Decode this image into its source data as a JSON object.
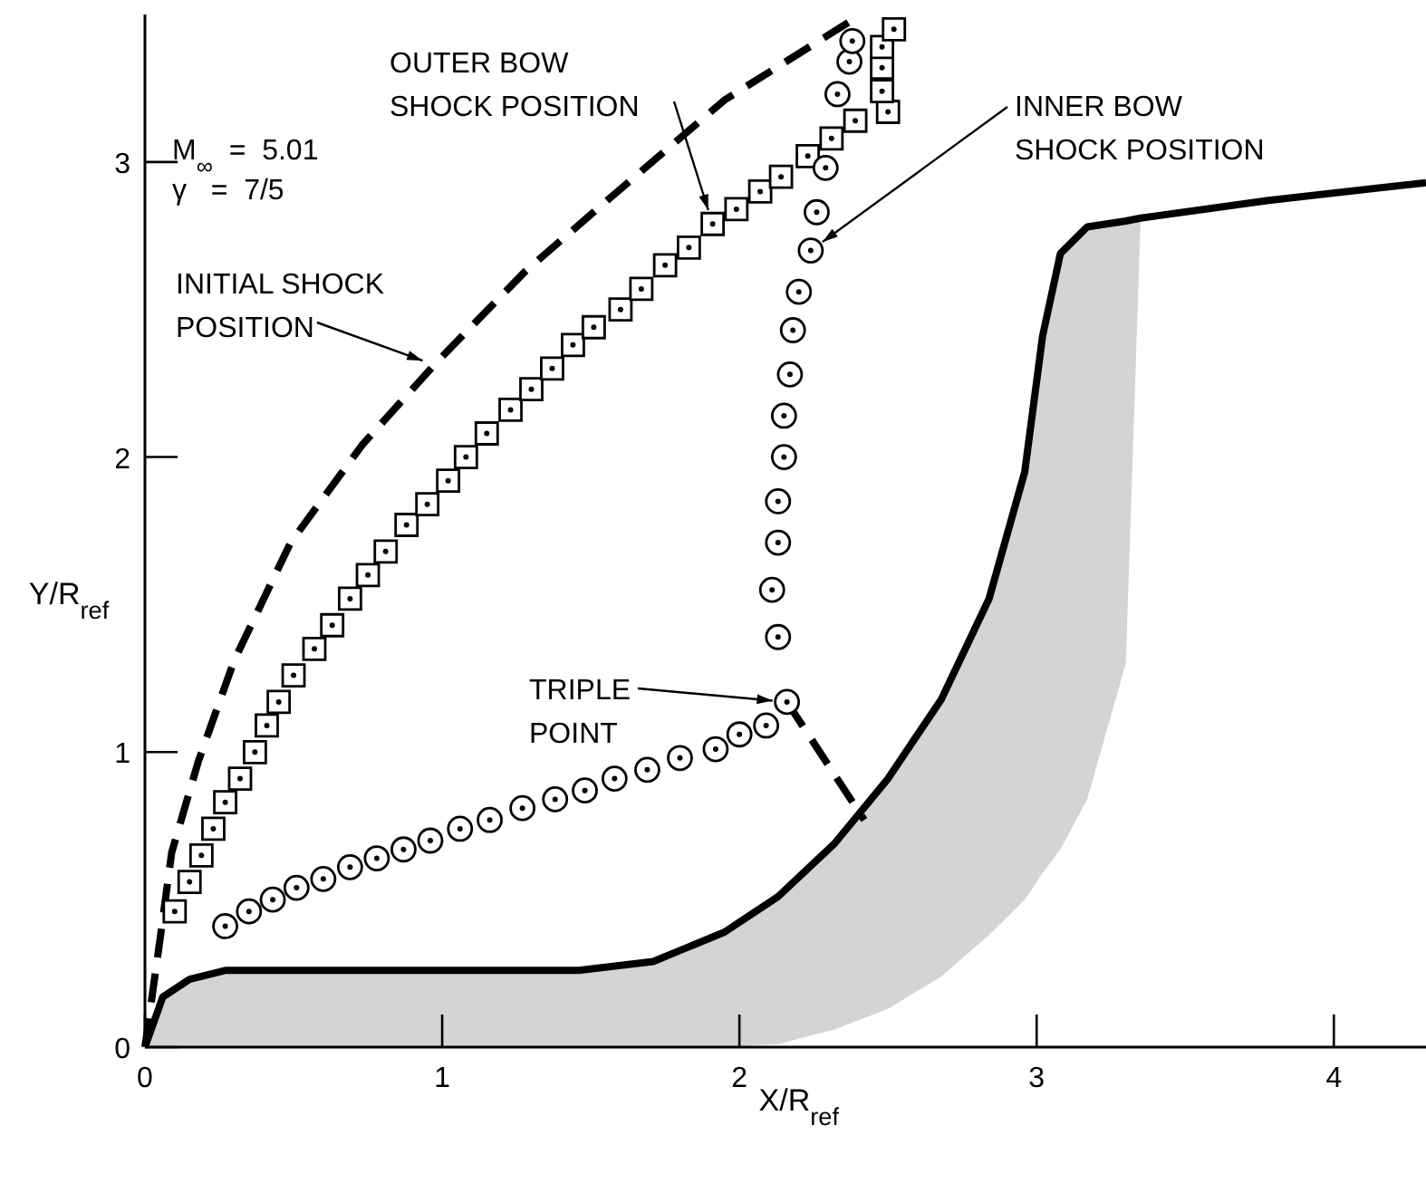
{
  "chart_data": {
    "type": "line",
    "xlabel": "X/R$_{ref}$",
    "ylabel": "Y/R$_{ref}$",
    "xlim": [
      0,
      4.31
    ],
    "ylim": [
      0,
      3.5
    ],
    "xticks": [
      0,
      1,
      2,
      3,
      4
    ],
    "yticks": [
      0,
      1,
      2,
      3
    ],
    "grid": false,
    "annotations": [
      "M$_{∞}$  =  5.01",
      "γ   =  7/5",
      {
        "text": "INITIAL SHOCK\nPOSITION",
        "x": 0.98,
        "y": 2.31
      },
      {
        "text": "OUTER BOW\nSHOCK POSITION",
        "x": 1.91,
        "y": 2.79
      },
      {
        "text": "INNER BOW\nSHOCK POSITION",
        "x": 2.24,
        "y": 2.7
      },
      {
        "text": "TRIPLE\nPOINT",
        "x": 2.16,
        "y": 1.17
      }
    ],
    "series": [
      {
        "color": "#000000",
        "line_style": "solid",
        "x": [
          0,
          0.06,
          0.15,
          0.27,
          0.73,
          1.46,
          1.71,
          1.95,
          2.13,
          2.32,
          2.5,
          2.68,
          2.84,
          2.96,
          3.02,
          3.08,
          3.17,
          3.3,
          3.35,
          3.78,
          4.31
        ],
        "values": [
          0,
          0.17,
          0.23,
          0.26,
          0.26,
          0.26,
          0.29,
          0.39,
          0.51,
          0.69,
          0.91,
          1.18,
          1.52,
          1.95,
          2.41,
          2.69,
          2.78,
          2.8,
          2.81,
          2.87,
          2.93
        ],
        "upper": [
          0,
          0.17,
          0.23,
          0.26,
          0.26,
          0.26,
          0.29,
          0.39,
          0.51,
          0.69,
          0.91,
          1.18,
          1.52,
          1.95,
          2.41,
          2.69,
          2.78,
          2.8,
          2.81,
          null,
          null
        ],
        "lower": [
          0,
          0,
          0,
          0,
          0,
          0,
          0,
          0,
          0.01,
          0.06,
          0.13,
          0.24,
          0.38,
          0.5,
          0.59,
          0.67,
          0.84,
          1.3,
          2.81,
          null,
          null
        ]
      },
      {
        "color": "#000000",
        "line_style": "dashed",
        "x": [
          0,
          0.05,
          0.09,
          0.18,
          0.3,
          0.49,
          0.73,
          0.98,
          1.28,
          1.59,
          1.95,
          2.41
        ],
        "values": [
          0,
          0.36,
          0.66,
          0.97,
          1.31,
          1.71,
          2.04,
          2.32,
          2.63,
          2.9,
          3.21,
          3.5
        ]
      },
      {
        "color": "#000000",
        "line_style": "dashed",
        "x": [
          2.16,
          2.42
        ],
        "values": [
          1.17,
          0.77
        ]
      },
      {
        "type": "scatter",
        "color": "#000000",
        "marker": "square",
        "x": [
          0.1,
          0.15,
          0.19,
          0.23,
          0.27,
          0.32,
          0.37,
          0.41,
          0.45,
          0.5,
          0.57,
          0.63,
          0.69,
          0.75,
          0.81,
          0.88,
          0.95,
          1.02,
          1.08,
          1.15,
          1.23,
          1.3,
          1.37,
          1.44,
          1.51,
          1.6,
          1.67,
          1.75,
          1.83,
          1.91,
          1.99,
          2.07,
          2.14,
          2.23,
          2.31,
          2.39,
          2.5,
          2.48,
          2.48,
          2.48,
          2.52
        ],
        "values": [
          0.46,
          0.56,
          0.65,
          0.74,
          0.83,
          0.91,
          1.0,
          1.09,
          1.17,
          1.26,
          1.35,
          1.43,
          1.52,
          1.6,
          1.68,
          1.77,
          1.84,
          1.92,
          2.0,
          2.08,
          2.16,
          2.23,
          2.3,
          2.38,
          2.44,
          2.5,
          2.57,
          2.65,
          2.71,
          2.79,
          2.84,
          2.9,
          2.95,
          3.02,
          3.08,
          3.14,
          3.17,
          3.24,
          3.32,
          3.39,
          3.45
        ]
      },
      {
        "type": "scatter",
        "color": "#000000",
        "marker": "circle",
        "x": [
          0.27,
          0.35,
          0.43,
          0.51,
          0.6,
          0.69,
          0.78,
          0.87,
          0.96,
          1.06,
          1.16,
          1.27,
          1.38,
          1.48,
          1.58,
          1.69,
          1.8,
          1.92,
          2.0,
          2.09,
          2.16,
          2.13,
          2.11,
          2.13,
          2.13,
          2.15,
          2.15,
          2.17,
          2.18,
          2.2,
          2.24,
          2.26,
          2.29,
          2.33,
          2.37,
          2.38
        ],
        "values": [
          0.41,
          0.46,
          0.5,
          0.54,
          0.57,
          0.61,
          0.64,
          0.67,
          0.7,
          0.74,
          0.77,
          0.81,
          0.84,
          0.87,
          0.91,
          0.94,
          0.98,
          1.01,
          1.06,
          1.09,
          1.17,
          1.39,
          1.55,
          1.71,
          1.85,
          2.0,
          2.14,
          2.28,
          2.43,
          2.56,
          2.7,
          2.83,
          2.98,
          3.23,
          3.34,
          3.41
        ]
      }
    ]
  }
}
